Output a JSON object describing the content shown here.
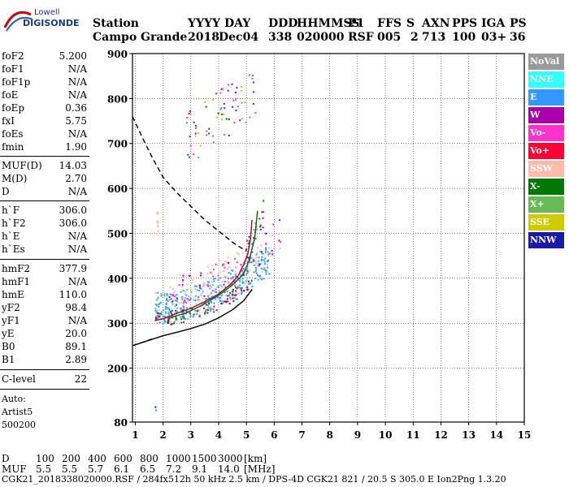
{
  "logo": {
    "line1": "Lowell",
    "line2": "DIGISONDE"
  },
  "header": {
    "labels": [
      "Station",
      "YYYY",
      "DAY",
      "DDD",
      "HHMMSS",
      "P1",
      "FFS",
      "S",
      "AXN",
      "PPS",
      "IGA",
      "PS"
    ],
    "values": [
      "Campo Grande",
      "2018",
      "Dec04",
      "338",
      "020000",
      "RSF",
      "005",
      "2",
      "713",
      "100",
      "03+",
      "36"
    ]
  },
  "params": [
    {
      "name": "foF2",
      "value": "5.200"
    },
    {
      "name": "foF1",
      "value": "N/A"
    },
    {
      "name": "foF1p",
      "value": "N/A"
    },
    {
      "name": "foE",
      "value": "N/A"
    },
    {
      "name": "foEp",
      "value": "0.36"
    },
    {
      "name": "fxI",
      "value": "5.75"
    },
    {
      "name": "foEs",
      "value": "N/A"
    },
    {
      "name": "fmin",
      "value": "1.90"
    },
    {
      "name": "MUF(D)",
      "value": "14.03"
    },
    {
      "name": "M(D)",
      "value": "2.70"
    },
    {
      "name": "D",
      "value": "N/A"
    },
    {
      "name": "h`F",
      "value": "306.0"
    },
    {
      "name": "h`F2",
      "value": "306.0"
    },
    {
      "name": "h`E",
      "value": "N/A"
    },
    {
      "name": "h`Es",
      "value": "N/A"
    },
    {
      "name": "hmF2",
      "value": "377.9"
    },
    {
      "name": "hmF1",
      "value": "N/A"
    },
    {
      "name": "hmE",
      "value": "110.0"
    },
    {
      "name": "yF2",
      "value": "98.4"
    },
    {
      "name": "yF1",
      "value": "N/A"
    },
    {
      "name": "yE",
      "value": "20.0"
    },
    {
      "name": "B0",
      "value": "89.1"
    },
    {
      "name": "B1",
      "value": "2.89"
    },
    {
      "name": "C-level",
      "value": "22"
    }
  ],
  "auto": {
    "line1": "Auto:",
    "line2": "Artist5",
    "line3": "500200"
  },
  "legend": [
    {
      "label": "NoVal",
      "bg": "#9a9a9a",
      "fg": "#ffffff"
    },
    {
      "label": "NNE",
      "bg": "#33ffff",
      "fg": "#ffffff"
    },
    {
      "label": "E",
      "bg": "#3399ff",
      "fg": "#ffffff"
    },
    {
      "label": "W",
      "bg": "#aa00aa",
      "fg": "#ffffff"
    },
    {
      "label": "Vo-",
      "bg": "#ff33cc",
      "fg": "#ffffff"
    },
    {
      "label": "Vo+",
      "bg": "#ff0033",
      "fg": "#ffffff"
    },
    {
      "label": "SSW",
      "bg": "#ffbbaa",
      "fg": "#ffffff"
    },
    {
      "label": "X-",
      "bg": "#007700",
      "fg": "#ffffff"
    },
    {
      "label": "X+",
      "bg": "#66bb55",
      "fg": "#ffffff"
    },
    {
      "label": "SSE",
      "bg": "#cccc00",
      "fg": "#ffffff"
    },
    {
      "label": "NNW",
      "bg": "#1a1aaa",
      "fg": "#ffffff"
    }
  ],
  "bottom": {
    "d_label": "D",
    "d_values": [
      "100",
      "200",
      "400",
      "600",
      "800",
      "1000",
      "1500",
      "3000",
      "[km]"
    ],
    "muf_label": "MUF",
    "muf_values": [
      "5.5",
      "5.5",
      "5.7",
      "6.1",
      "6.5",
      "7.2",
      "9.1",
      "14.0",
      "[MHz]"
    ],
    "footer": "CGK21_2018338020000.RSF / 284fx512h 50 kHz 2.5 km / DPS-4D CGK21 821 / 20.5 S 305.0 E Ion2Png 1.3.20"
  },
  "chart_data": {
    "type": "scatter",
    "xlim": [
      0.9,
      15
    ],
    "ylim": [
      80,
      900
    ],
    "x_ticks": [
      1,
      2,
      3,
      4,
      5,
      6,
      7,
      8,
      9,
      10,
      11,
      12,
      13,
      14,
      15
    ],
    "y_ticks": [
      80,
      200,
      300,
      400,
      500,
      600,
      700,
      800,
      900
    ],
    "grid": true,
    "series": [
      {
        "name": "Vo+",
        "color": "#aa0033",
        "x": [
          1.7,
          2.0,
          2.5,
          3.0,
          3.5,
          4.0,
          4.4,
          4.7,
          4.9,
          5.05,
          5.15,
          5.2
        ],
        "y": [
          306,
          310,
          322,
          333,
          348,
          365,
          385,
          405,
          430,
          455,
          490,
          530
        ]
      },
      {
        "name": "X-",
        "color": "#006600",
        "x": [
          2.2,
          2.8,
          3.4,
          4.0,
          4.5,
          4.9,
          5.1,
          5.3,
          5.4
        ],
        "y": [
          312,
          322,
          340,
          362,
          385,
          410,
          440,
          490,
          550
        ]
      },
      {
        "name": "profile",
        "color": "#000000",
        "x": [
          0.9,
          1.5,
          2.0,
          2.5,
          3.0,
          3.5,
          4.0,
          4.5,
          4.9,
          5.2
        ],
        "y": [
          250,
          262,
          272,
          280,
          288,
          298,
          312,
          330,
          350,
          375
        ]
      },
      {
        "name": "MUF curve",
        "color": "#000000",
        "x": [
          0.9,
          1.2,
          1.6,
          2.0,
          2.5,
          3.0,
          3.5,
          4.0,
          4.5,
          5.0
        ],
        "y": [
          760,
          720,
          670,
          625,
          590,
          560,
          530,
          505,
          480,
          460
        ]
      }
    ]
  }
}
